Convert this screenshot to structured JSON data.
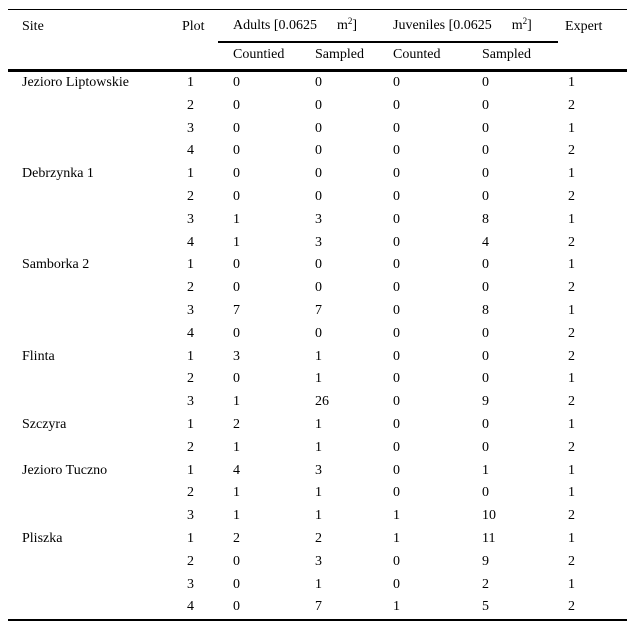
{
  "colors": {
    "background": "#ffffff",
    "text": "#000000",
    "rule": "#000000"
  },
  "table": {
    "header": {
      "site": "Site",
      "plot": "Plot",
      "adults_group": {
        "prefix": "Adults [0.0625",
        "unit": "m",
        "exponent": "2",
        "suffix": "]"
      },
      "juveniles_group": {
        "prefix": "Juveniles [0.0625",
        "unit": "m",
        "exponent": "2",
        "suffix": "]"
      },
      "expert": "Expert",
      "sub": {
        "adults_counted": "Countied",
        "adults_sampled": "Sampled",
        "juveniles_counted": "Counted",
        "juveniles_sampled": "Sampled"
      }
    },
    "groups": [
      {
        "site": "Jezioro Liptowskie",
        "rows": [
          {
            "plot": 1,
            "adults_counted": 0,
            "adults_sampled": 0,
            "juveniles_counted": 0,
            "juveniles_sampled": 0,
            "expert": 1
          },
          {
            "plot": 2,
            "adults_counted": 0,
            "adults_sampled": 0,
            "juveniles_counted": 0,
            "juveniles_sampled": 0,
            "expert": 2
          },
          {
            "plot": 3,
            "adults_counted": 0,
            "adults_sampled": 0,
            "juveniles_counted": 0,
            "juveniles_sampled": 0,
            "expert": 1
          },
          {
            "plot": 4,
            "adults_counted": 0,
            "adults_sampled": 0,
            "juveniles_counted": 0,
            "juveniles_sampled": 0,
            "expert": 2
          }
        ]
      },
      {
        "site": "Debrzynka 1",
        "rows": [
          {
            "plot": 1,
            "adults_counted": 0,
            "adults_sampled": 0,
            "juveniles_counted": 0,
            "juveniles_sampled": 0,
            "expert": 1
          },
          {
            "plot": 2,
            "adults_counted": 0,
            "adults_sampled": 0,
            "juveniles_counted": 0,
            "juveniles_sampled": 0,
            "expert": 2
          },
          {
            "plot": 3,
            "adults_counted": 1,
            "adults_sampled": 3,
            "juveniles_counted": 0,
            "juveniles_sampled": 8,
            "expert": 1
          },
          {
            "plot": 4,
            "adults_counted": 1,
            "adults_sampled": 3,
            "juveniles_counted": 0,
            "juveniles_sampled": 4,
            "expert": 2
          }
        ]
      },
      {
        "site": "Samborka 2",
        "rows": [
          {
            "plot": 1,
            "adults_counted": 0,
            "adults_sampled": 0,
            "juveniles_counted": 0,
            "juveniles_sampled": 0,
            "expert": 1
          },
          {
            "plot": 2,
            "adults_counted": 0,
            "adults_sampled": 0,
            "juveniles_counted": 0,
            "juveniles_sampled": 0,
            "expert": 2
          },
          {
            "plot": 3,
            "adults_counted": 7,
            "adults_sampled": 7,
            "juveniles_counted": 0,
            "juveniles_sampled": 8,
            "expert": 1
          },
          {
            "plot": 4,
            "adults_counted": 0,
            "adults_sampled": 0,
            "juveniles_counted": 0,
            "juveniles_sampled": 0,
            "expert": 2
          }
        ]
      },
      {
        "site": "Flinta",
        "rows": [
          {
            "plot": 1,
            "adults_counted": 3,
            "adults_sampled": 1,
            "juveniles_counted": 0,
            "juveniles_sampled": 0,
            "expert": 2
          },
          {
            "plot": 2,
            "adults_counted": 0,
            "adults_sampled": 1,
            "juveniles_counted": 0,
            "juveniles_sampled": 0,
            "expert": 1
          },
          {
            "plot": 3,
            "adults_counted": 1,
            "adults_sampled": 26,
            "juveniles_counted": 0,
            "juveniles_sampled": 9,
            "expert": 2
          }
        ]
      },
      {
        "site": "Szczyra",
        "rows": [
          {
            "plot": 1,
            "adults_counted": 2,
            "adults_sampled": 1,
            "juveniles_counted": 0,
            "juveniles_sampled": 0,
            "expert": 1
          },
          {
            "plot": 2,
            "adults_counted": 1,
            "adults_sampled": 1,
            "juveniles_counted": 0,
            "juveniles_sampled": 0,
            "expert": 2
          }
        ]
      },
      {
        "site": "Jezioro Tuczno",
        "rows": [
          {
            "plot": 1,
            "adults_counted": 4,
            "adults_sampled": 3,
            "juveniles_counted": 0,
            "juveniles_sampled": 1,
            "expert": 1
          },
          {
            "plot": 2,
            "adults_counted": 1,
            "adults_sampled": 1,
            "juveniles_counted": 0,
            "juveniles_sampled": 0,
            "expert": 1
          },
          {
            "plot": 3,
            "adults_counted": 1,
            "adults_sampled": 1,
            "juveniles_counted": 1,
            "juveniles_sampled": 10,
            "expert": 2
          }
        ]
      },
      {
        "site": "Pliszka",
        "rows": [
          {
            "plot": 1,
            "adults_counted": 2,
            "adults_sampled": 2,
            "juveniles_counted": 1,
            "juveniles_sampled": 11,
            "expert": 1
          },
          {
            "plot": 2,
            "adults_counted": 0,
            "adults_sampled": 3,
            "juveniles_counted": 0,
            "juveniles_sampled": 9,
            "expert": 2
          },
          {
            "plot": 3,
            "adults_counted": 0,
            "adults_sampled": 1,
            "juveniles_counted": 0,
            "juveniles_sampled": 2,
            "expert": 1
          },
          {
            "plot": 4,
            "adults_counted": 0,
            "adults_sampled": 7,
            "juveniles_counted": 1,
            "juveniles_sampled": 5,
            "expert": 2
          }
        ]
      }
    ]
  }
}
